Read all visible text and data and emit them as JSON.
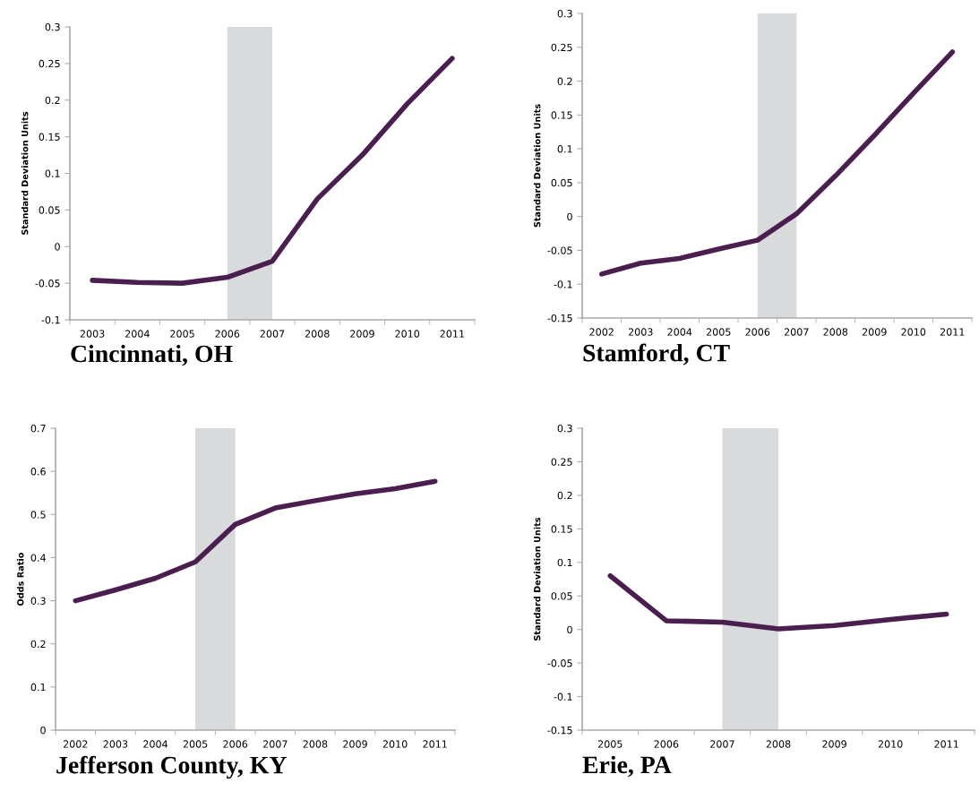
{
  "chart_data": [
    {
      "type": "line",
      "title": "Cincinnati, OH",
      "ylabel": "Standard Deviation Units",
      "categories": [
        "2003",
        "2004",
        "2005",
        "2006",
        "2007",
        "2008",
        "2009",
        "2010",
        "2011"
      ],
      "series": [
        {
          "color": "#4a1f4f",
          "values": [
            -0.046,
            -0.049,
            -0.05,
            -0.042,
            -0.02,
            0.065,
            0.125,
            0.195,
            0.257
          ]
        }
      ],
      "ylim": [
        -0.1,
        0.3
      ],
      "yticks": [
        -0.1,
        -0.05,
        0,
        0.05,
        0.1,
        0.15,
        0.2,
        0.25,
        0.3
      ],
      "bands": [
        {
          "axis": "x",
          "from": "2006",
          "to": "2007",
          "color": "#d9dadc"
        }
      ]
    },
    {
      "type": "line",
      "title": "Stamford, CT",
      "ylabel": "Standard Deviation Units",
      "categories": [
        "2002",
        "2003",
        "2004",
        "2005",
        "2006",
        "2007",
        "2008",
        "2009",
        "2010",
        "2011"
      ],
      "series": [
        {
          "color": "#4a1f4f",
          "values": [
            -0.085,
            -0.069,
            -0.062,
            -0.048,
            -0.035,
            0.004,
            0.06,
            0.12,
            0.182,
            0.243
          ]
        }
      ],
      "ylim": [
        -0.15,
        0.3
      ],
      "yticks": [
        -0.15,
        -0.1,
        -0.05,
        0,
        0.05,
        0.1,
        0.15,
        0.2,
        0.25,
        0.3
      ],
      "bands": [
        {
          "axis": "x",
          "from": "2006",
          "to": "2007",
          "color": "#d9dadc"
        }
      ]
    },
    {
      "type": "line",
      "title": "Jefferson County, KY",
      "ylabel": "Odds Ratio",
      "categories": [
        "2002",
        "2003",
        "2004",
        "2005",
        "2006",
        "2007",
        "2008",
        "2009",
        "2010",
        "2011"
      ],
      "series": [
        {
          "color": "#4a1f4f",
          "values": [
            0.3,
            0.325,
            0.352,
            0.39,
            0.477,
            0.515,
            0.532,
            0.548,
            0.56,
            0.577
          ]
        }
      ],
      "ylim": [
        0,
        0.7
      ],
      "yticks": [
        0,
        0.1,
        0.2,
        0.3,
        0.4,
        0.5,
        0.6,
        0.7
      ],
      "bands": [
        {
          "axis": "x",
          "from": "2005",
          "to": "2006",
          "color": "#d9dadc"
        }
      ]
    },
    {
      "type": "line",
      "title": "Erie, PA",
      "ylabel": "Standard Deviation Units",
      "categories": [
        "2005",
        "2006",
        "2007",
        "2008",
        "2009",
        "2010",
        "2011"
      ],
      "series": [
        {
          "color": "#4a1f4f",
          "values": [
            0.08,
            0.013,
            0.011,
            0.001,
            0.006,
            0.015,
            0.023
          ]
        }
      ],
      "ylim": [
        -0.15,
        0.3
      ],
      "yticks": [
        -0.15,
        -0.1,
        -0.05,
        0,
        0.05,
        0.1,
        0.15,
        0.2,
        0.25,
        0.3
      ],
      "bands": [
        {
          "axis": "x",
          "from": "2007",
          "to": "2008",
          "color": "#d9dadc"
        }
      ]
    }
  ]
}
